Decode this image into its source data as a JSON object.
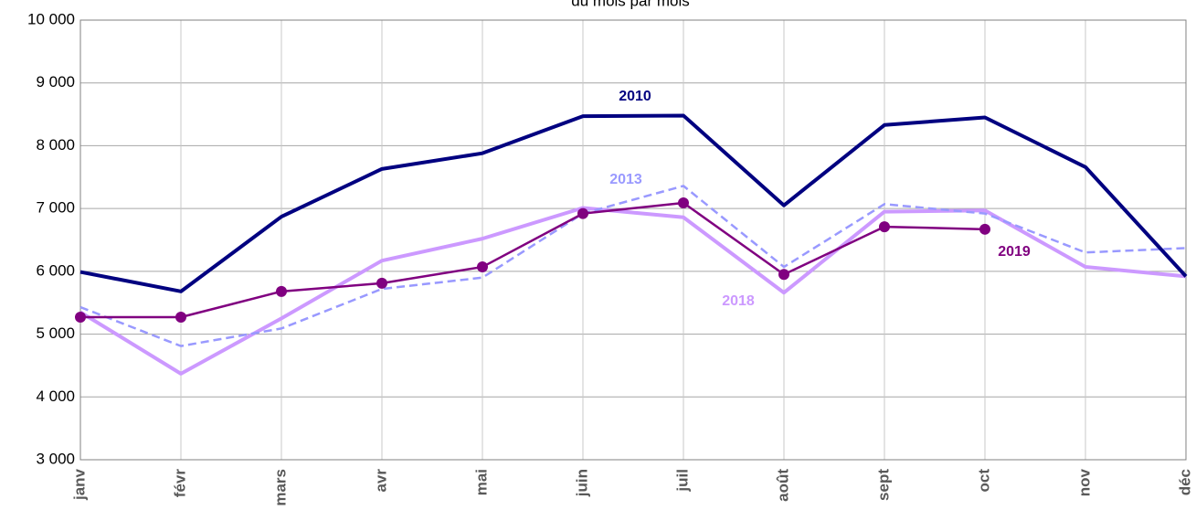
{
  "chart_data": {
    "type": "line",
    "title": "du mois par mois",
    "categories": [
      "janv",
      "févr",
      "mars",
      "avr",
      "mai",
      "juin",
      "juil",
      "août",
      "sept",
      "oct",
      "nov",
      "déc"
    ],
    "ylim": [
      3000,
      10000
    ],
    "yticks": [
      {
        "value": 3000,
        "label": "3 000"
      },
      {
        "value": 4000,
        "label": "4 000"
      },
      {
        "value": 5000,
        "label": "5 000"
      },
      {
        "value": 6000,
        "label": "6 000"
      },
      {
        "value": 7000,
        "label": "7 000"
      },
      {
        "value": 8000,
        "label": "8 000"
      },
      {
        "value": 9000,
        "label": "9 000"
      },
      {
        "value": 10000,
        "label": "10 000"
      }
    ],
    "grid": true,
    "series": [
      {
        "name": "2010",
        "color": "#000080",
        "values": [
          5990,
          5680,
          6870,
          7630,
          7880,
          8470,
          8480,
          7050,
          8330,
          8450,
          7660,
          5920
        ]
      },
      {
        "name": "2013",
        "color": "#9999ff",
        "dashed": true,
        "values": [
          5430,
          4810,
          5090,
          5720,
          5900,
          6920,
          7360,
          6070,
          7070,
          6920,
          6300,
          6370
        ]
      },
      {
        "name": "2018",
        "color": "#cc99ff",
        "values": [
          5350,
          4370,
          5250,
          6170,
          6520,
          7010,
          6860,
          5660,
          6950,
          6970,
          6070,
          5920
        ]
      },
      {
        "name": "2019",
        "color": "#800080",
        "markers": true,
        "values": [
          5270,
          5270,
          5680,
          5810,
          6070,
          6920,
          7090,
          5950,
          6710,
          6670,
          null,
          null
        ]
      }
    ]
  }
}
